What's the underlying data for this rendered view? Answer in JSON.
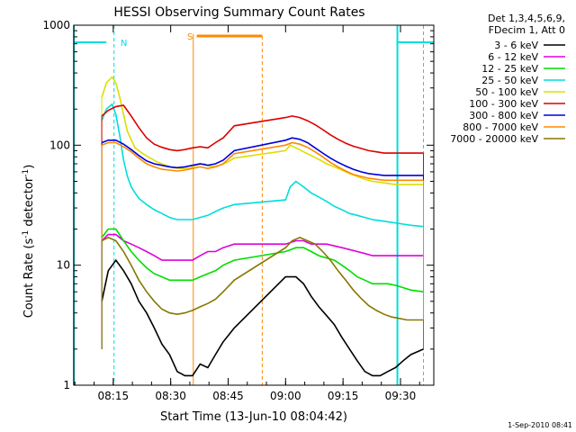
{
  "chart_data": {
    "type": "line",
    "title": "HESSI Observing Summary Count Rates",
    "xlabel": "Start Time (13-Jun-10 08:04:42)",
    "ylabel_main": "Count Rate (s",
    "ylabel_sup": "-1",
    "ylabel_mid": " detector",
    "ylabel_sup2": "-1",
    "ylabel_end": ")",
    "yscale": "log",
    "ylim": [
      1,
      1000
    ],
    "xlim_minutes": [
      0,
      94
    ],
    "x_ticks": [
      "08:15",
      "08:30",
      "08:45",
      "09:00",
      "09:15",
      "09:30"
    ],
    "x_tick_minutes": [
      10.3,
      25.3,
      40.3,
      55.3,
      70.3,
      85.3
    ],
    "y_ticks": [
      "1",
      "10",
      "100",
      "1000"
    ],
    "y_tick_values": [
      1,
      10,
      100,
      1000
    ],
    "legend": {
      "header": [
        "Det 1,3,4,5,6,9,",
        "FDecim 1, Att 0"
      ],
      "position": "right"
    },
    "series": [
      {
        "name": "3 - 6 keV",
        "color": "#000000",
        "x": [
          7.3,
          9,
          11,
          13,
          15,
          17,
          19,
          21,
          23,
          25,
          27,
          29,
          31,
          33,
          35,
          37,
          39,
          41.9,
          55.3,
          58,
          60,
          62,
          64,
          66,
          68,
          70,
          72,
          74,
          76,
          78,
          80,
          82,
          84,
          86,
          88,
          91.3
        ],
        "y": [
          5,
          9,
          11,
          9,
          7,
          5,
          4,
          3,
          2.2,
          1.8,
          1.3,
          1.2,
          1.2,
          1.5,
          1.4,
          1.8,
          2.3,
          3,
          8,
          8,
          7,
          5.5,
          4.5,
          3.8,
          3.2,
          2.5,
          2,
          1.6,
          1.3,
          1.2,
          1.2,
          1.3,
          1.4,
          1.6,
          1.8,
          2
        ]
      },
      {
        "name": "6 - 12 keV",
        "color": "#dd00dd",
        "x": [
          7.3,
          9,
          11,
          13,
          15,
          17,
          19,
          21,
          23,
          25,
          27,
          29,
          31,
          33,
          35,
          37,
          39,
          41.9,
          55.3,
          58,
          60,
          62,
          64,
          66,
          68,
          70,
          72,
          74,
          76,
          78,
          80,
          82,
          84,
          86,
          88,
          91.3
        ],
        "y": [
          16,
          18,
          18,
          16,
          15,
          14,
          13,
          12,
          11,
          11,
          11,
          11,
          11,
          12,
          13,
          13,
          14,
          15,
          15,
          16,
          16,
          15,
          15,
          15,
          14.5,
          14,
          13.5,
          13,
          12.5,
          12,
          12,
          12,
          12,
          12,
          12,
          12
        ]
      },
      {
        "name": "12 - 25 keV",
        "color": "#00dd00",
        "x": [
          7.3,
          9,
          11,
          13,
          15,
          17,
          19,
          21,
          23,
          25,
          27,
          29,
          31,
          33,
          35,
          37,
          39,
          41.9,
          55.3,
          58,
          60,
          62,
          64,
          66,
          68,
          70,
          72,
          74,
          76,
          78,
          80,
          82,
          84,
          86,
          88,
          91.3
        ],
        "y": [
          17,
          20,
          20,
          16,
          13,
          11,
          9.5,
          8.5,
          8,
          7.5,
          7.5,
          7.5,
          7.5,
          8,
          8.5,
          9,
          10,
          11,
          13,
          14,
          14,
          13,
          12,
          11.5,
          11,
          10,
          9,
          8,
          7.5,
          7,
          7,
          7,
          6.8,
          6.5,
          6.2,
          6
        ]
      },
      {
        "name": "25 - 50 keV",
        "color": "#00dddd",
        "x": [
          7.3,
          8.5,
          10,
          11,
          12,
          13,
          14,
          15,
          16,
          17,
          19,
          21,
          23,
          25,
          27,
          29,
          31,
          33,
          35,
          37,
          39,
          41.9,
          55.3,
          56.5,
          58,
          60,
          62,
          64,
          66,
          68,
          70,
          72,
          74,
          76,
          78,
          80,
          82,
          84,
          86,
          88,
          91.3
        ],
        "y": [
          160,
          200,
          220,
          180,
          120,
          75,
          55,
          45,
          40,
          36,
          32,
          29,
          27,
          25,
          24,
          24,
          24,
          25,
          26,
          28,
          30,
          32,
          35,
          45,
          50,
          45,
          40,
          37,
          34,
          31,
          29,
          27,
          26,
          25,
          24,
          23.5,
          23,
          22.5,
          22,
          21.5,
          21
        ]
      },
      {
        "name": "50 - 100 keV",
        "color": "#dddd00",
        "x": [
          7.3,
          8.5,
          10,
          11,
          12,
          13,
          14,
          16,
          18,
          20,
          22,
          24,
          26,
          28,
          30,
          32,
          34,
          36,
          38,
          40,
          41.9,
          55.3,
          56.5,
          58,
          60,
          62,
          64,
          66,
          68,
          70,
          72,
          74,
          76,
          78,
          80,
          82,
          84,
          86,
          88,
          91.3
        ],
        "y": [
          250,
          330,
          370,
          330,
          250,
          180,
          130,
          95,
          85,
          78,
          72,
          68,
          65,
          64,
          64,
          68,
          70,
          66,
          68,
          72,
          78,
          90,
          100,
          95,
          88,
          82,
          76,
          70,
          66,
          62,
          58,
          55,
          52,
          50,
          49,
          48,
          47,
          47,
          47,
          47
        ]
      },
      {
        "name": "100 - 300 keV",
        "color": "#dd0000",
        "x": [
          7.3,
          9,
          11,
          13,
          15,
          17,
          19,
          21,
          23,
          25,
          27,
          29,
          31,
          33,
          35,
          37,
          39,
          41.9,
          55.3,
          57,
          59,
          61,
          63,
          65,
          67,
          69,
          71,
          73,
          75,
          77,
          79,
          81,
          83,
          85,
          87,
          91.3
        ],
        "y": [
          175,
          195,
          210,
          215,
          175,
          140,
          115,
          102,
          96,
          92,
          90,
          92,
          95,
          97,
          95,
          105,
          115,
          145,
          170,
          175,
          170,
          160,
          148,
          135,
          122,
          112,
          104,
          98,
          94,
          90,
          88,
          86,
          86,
          86,
          86,
          86
        ]
      },
      {
        "name": "300 - 800 keV",
        "color": "#0000dd",
        "x": [
          7.3,
          9,
          11,
          13,
          15,
          17,
          19,
          21,
          23,
          25,
          27,
          29,
          31,
          33,
          35,
          37,
          39,
          41.9,
          55.3,
          57,
          59,
          61,
          63,
          65,
          67,
          69,
          71,
          73,
          75,
          77,
          79,
          81,
          83,
          85,
          87,
          91.3
        ],
        "y": [
          105,
          110,
          110,
          102,
          92,
          82,
          74,
          70,
          68,
          66,
          65,
          66,
          68,
          70,
          68,
          70,
          75,
          90,
          110,
          115,
          112,
          105,
          95,
          86,
          78,
          72,
          67,
          63,
          60,
          58,
          57,
          56,
          56,
          56,
          56,
          56
        ]
      },
      {
        "name": "800 - 7000 keV",
        "color": "#ff8800",
        "x": [
          7.3,
          9,
          11,
          13,
          15,
          17,
          19,
          21,
          23,
          25,
          27,
          29,
          31,
          33,
          35,
          37,
          39,
          41.9,
          55.3,
          57,
          59,
          61,
          63,
          65,
          67,
          69,
          71,
          73,
          75,
          77,
          79,
          81,
          83,
          85,
          87,
          91.3
        ],
        "y": [
          100,
          105,
          105,
          97,
          88,
          78,
          70,
          66,
          63,
          62,
          61,
          62,
          64,
          66,
          64,
          66,
          70,
          85,
          100,
          105,
          102,
          96,
          88,
          80,
          72,
          66,
          61,
          57,
          55,
          53,
          52,
          51,
          51,
          51,
          51,
          51
        ]
      },
      {
        "name": "7000 - 20000 keV",
        "color": "#887700",
        "x": [
          7.3,
          9,
          11,
          13,
          15,
          17,
          19,
          21,
          23,
          25,
          27,
          29,
          31,
          33,
          35,
          37,
          39,
          41.9,
          55.3,
          57,
          59,
          61,
          63,
          65,
          67,
          69,
          71,
          73,
          75,
          77,
          79,
          81,
          83,
          85,
          87,
          91.3
        ],
        "y": [
          16,
          17,
          16,
          13,
          10,
          7.5,
          6,
          5,
          4.3,
          4,
          3.9,
          4,
          4.2,
          4.5,
          4.8,
          5.2,
          6,
          7.5,
          14,
          16,
          17,
          16,
          15,
          13,
          11,
          9,
          7.5,
          6.2,
          5.3,
          4.6,
          4.2,
          3.9,
          3.7,
          3.6,
          3.5,
          3.5
        ]
      }
    ],
    "markers": [
      {
        "label": "N",
        "color": "#00dddd"
      },
      {
        "label": "S",
        "color": "#ff8800"
      }
    ]
  },
  "footer": {
    "timestamp": "1-Sep-2010 08:41"
  }
}
